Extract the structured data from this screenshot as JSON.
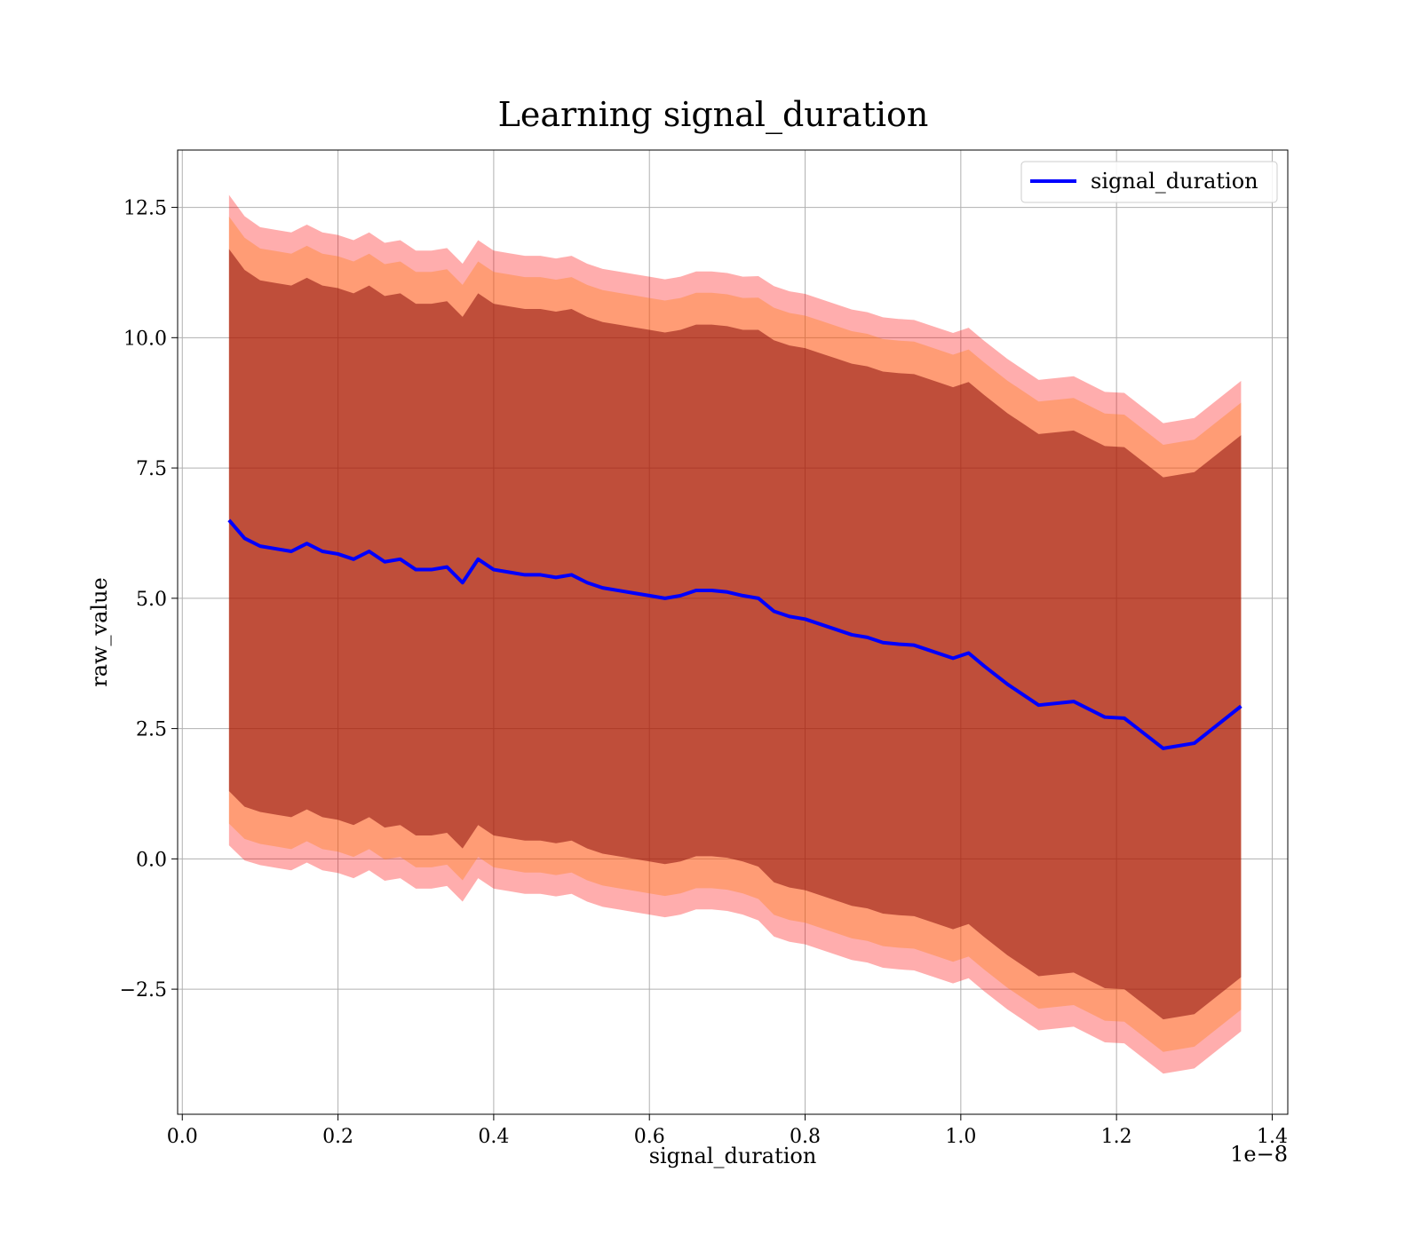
{
  "chart_data": {
    "type": "line",
    "title": "Learning signal_duration",
    "xlabel": "signal_duration",
    "ylabel": "raw_value",
    "x_offset_label": "1e−8",
    "xlim": [
      -0.006,
      1.42
    ],
    "ylim": [
      -4.9,
      13.6
    ],
    "x_ticks": [
      0.0,
      0.2,
      0.4,
      0.6,
      0.8,
      1.0,
      1.2,
      1.4
    ],
    "x_tick_labels": [
      "0.0",
      "0.2",
      "0.4",
      "0.6",
      "0.8",
      "1.0",
      "1.2",
      "1.4"
    ],
    "y_ticks": [
      -2.5,
      0.0,
      2.5,
      5.0,
      7.5,
      10.0,
      12.5
    ],
    "y_tick_labels": [
      "−2.5",
      "0.0",
      "2.5",
      "5.0",
      "7.5",
      "10.0",
      "12.5"
    ],
    "grid": true,
    "legend_position": "top-right",
    "colors": {
      "line": "#0000ff",
      "outer_band": "#ff0000",
      "middle_band": "#ff7f0e",
      "inner_band": "#800000"
    },
    "series": [
      {
        "name": "signal_duration",
        "x": [
          0.06,
          0.08,
          0.1,
          0.12,
          0.14,
          0.16,
          0.18,
          0.2,
          0.22,
          0.24,
          0.26,
          0.28,
          0.3,
          0.32,
          0.34,
          0.36,
          0.38,
          0.4,
          0.42,
          0.44,
          0.46,
          0.48,
          0.5,
          0.52,
          0.54,
          0.56,
          0.58,
          0.6,
          0.62,
          0.64,
          0.66,
          0.68,
          0.7,
          0.72,
          0.74,
          0.76,
          0.78,
          0.8,
          0.82,
          0.84,
          0.86,
          0.88,
          0.9,
          0.92,
          0.94,
          0.96,
          0.99,
          1.01,
          1.03,
          1.06,
          1.1,
          1.145,
          1.185,
          1.21,
          1.26,
          1.3,
          1.36
        ],
        "mean": [
          6.5,
          6.15,
          6.0,
          5.95,
          5.9,
          6.05,
          5.9,
          5.85,
          5.75,
          5.9,
          5.7,
          5.75,
          5.55,
          5.55,
          5.6,
          5.3,
          5.75,
          5.55,
          5.5,
          5.45,
          5.45,
          5.4,
          5.45,
          5.3,
          5.2,
          5.15,
          5.1,
          5.05,
          5.0,
          5.05,
          5.15,
          5.15,
          5.12,
          5.05,
          5.0,
          4.75,
          4.65,
          4.6,
          4.5,
          4.4,
          4.3,
          4.25,
          4.15,
          4.12,
          4.1,
          4.0,
          3.85,
          3.95,
          3.7,
          3.35,
          2.95,
          3.02,
          2.72,
          2.7,
          2.12,
          2.22,
          2.93
        ],
        "std": [
          5.2,
          5.15,
          5.1,
          5.1,
          5.1,
          5.1,
          5.1,
          5.1,
          5.1,
          5.1,
          5.1,
          5.1,
          5.1,
          5.1,
          5.1,
          5.1,
          5.1,
          5.1,
          5.1,
          5.1,
          5.1,
          5.1,
          5.1,
          5.1,
          5.1,
          5.1,
          5.1,
          5.1,
          5.1,
          5.1,
          5.1,
          5.1,
          5.1,
          5.1,
          5.15,
          5.2,
          5.2,
          5.2,
          5.2,
          5.2,
          5.2,
          5.2,
          5.2,
          5.2,
          5.2,
          5.2,
          5.2,
          5.2,
          5.2,
          5.2,
          5.2,
          5.2,
          5.2,
          5.2,
          5.2,
          5.2,
          5.2
        ]
      }
    ],
    "bands": [
      {
        "color_key": "outer_band",
        "sigma": 1.2,
        "opacity": 0.32
      },
      {
        "color_key": "middle_band",
        "sigma": 1.12,
        "opacity": 0.35
      },
      {
        "color_key": "inner_band",
        "sigma": 1.0,
        "opacity": 0.5
      }
    ]
  }
}
